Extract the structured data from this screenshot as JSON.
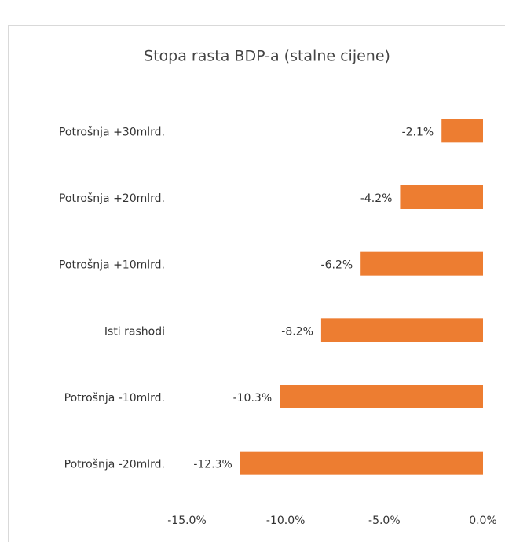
{
  "chart_data": {
    "type": "bar",
    "orientation": "horizontal",
    "title": "Stopa rasta BDP-a (stalne cijene)",
    "categories": [
      "Potrošnja +30mlrd.",
      "Potrošnja +20mlrd.",
      "Potrošnja +10mlrd.",
      "Isti rashodi",
      "Potrošnja -10mlrd.",
      "Potrošnja -20mlrd."
    ],
    "values": [
      -2.1,
      -4.2,
      -6.2,
      -8.2,
      -10.3,
      -12.3
    ],
    "value_labels": [
      "-2.1%",
      "-4.2%",
      "-6.2%",
      "-8.2%",
      "-10.3%",
      "-12.3%"
    ],
    "color": "#ed7d31",
    "xlim": [
      -15,
      0
    ],
    "xticks": [
      {
        "value": -15,
        "label": "-15.0%"
      },
      {
        "value": -10,
        "label": "-10.0%"
      },
      {
        "value": -5,
        "label": "-5.0%"
      },
      {
        "value": 0,
        "label": "0.0%"
      }
    ],
    "grid": false
  }
}
